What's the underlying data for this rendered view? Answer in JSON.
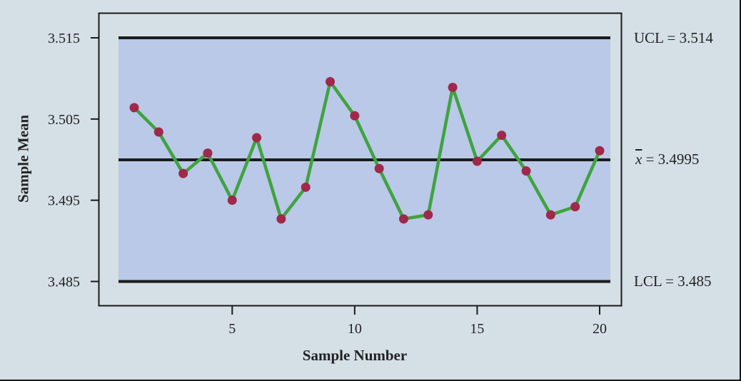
{
  "chart_data": {
    "type": "line",
    "title": "",
    "xlabel": "Sample Number",
    "ylabel": "Sample Mean",
    "x": [
      1,
      2,
      3,
      4,
      5,
      6,
      7,
      8,
      9,
      10,
      11,
      12,
      13,
      14,
      15,
      16,
      17,
      18,
      19,
      20
    ],
    "series": [
      {
        "name": "Sample Mean",
        "values": [
          3.5064,
          3.5034,
          3.4983,
          3.5008,
          3.495,
          3.5027,
          3.4927,
          3.4966,
          3.5096,
          3.5054,
          3.4989,
          3.4927,
          3.4932,
          3.5089,
          3.4998,
          3.503,
          3.4986,
          3.4932,
          3.4942,
          3.5011
        ],
        "color": "#3fa33f",
        "marker_color": "#a0284a"
      }
    ],
    "control_lines": {
      "UCL": 3.514,
      "center": 3.4995,
      "LCL": 3.485
    },
    "x_ticks": [
      5,
      10,
      15,
      20
    ],
    "y_ticks": [
      3.485,
      3.495,
      3.505,
      3.515
    ],
    "ylim": [
      3.485,
      3.515
    ],
    "xlim": [
      0.4,
      20.5
    ],
    "grid": false,
    "legend": "none",
    "plot_bg_color": "#b9c9e7",
    "page_bg_color": "#d5dfe6"
  },
  "labels": {
    "ucl": "UCL = 3.514",
    "center_symbol": "x",
    "center_value": " = 3.4995",
    "lcl": "LCL = 3.485",
    "ylabel": "Sample Mean",
    "xlabel": "Sample Number",
    "y_tick_labels": [
      "3.515",
      "3.505",
      "3.495",
      "3.485"
    ],
    "x_tick_labels": [
      "5",
      "10",
      "15",
      "20"
    ]
  }
}
